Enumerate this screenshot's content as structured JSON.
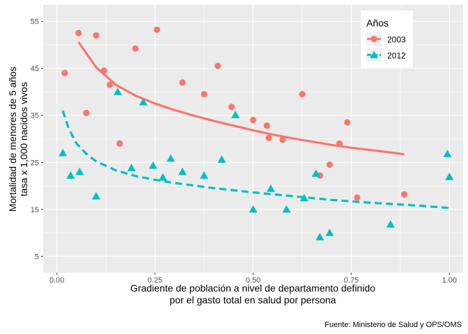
{
  "chart_data": {
    "type": "scatter",
    "xlabel": [
      "Gradiente de población a nivel de departamento definido",
      "por el gasto total en salud por persona"
    ],
    "ylabel": [
      "Mortalidad de menores de 5 años",
      "tasa x 1,000 nacidos vivos"
    ],
    "caption": "Fuente: Ministerio de Salud y OPS/OMS",
    "legend_title": "Años",
    "legend_position": "top-right",
    "grid": true,
    "xlim": [
      -0.035,
      1.035
    ],
    "ylim": [
      1.5,
      58.5
    ],
    "x_ticks": [
      0.0,
      0.25,
      0.5,
      0.75,
      1.0
    ],
    "x_tick_labels": [
      "0.00",
      "0.25",
      "0.50",
      "0.75",
      "1.00"
    ],
    "y_ticks": [
      5,
      15,
      25,
      35,
      45,
      55
    ],
    "y_tick_labels": [
      "5",
      "15",
      "25",
      "35",
      "45",
      "55"
    ],
    "series": [
      {
        "name": "2003",
        "color": "#F8766D",
        "marker": "circle",
        "points": [
          [
            0.02,
            44.0
          ],
          [
            0.055,
            52.5
          ],
          [
            0.075,
            35.5
          ],
          [
            0.1,
            52.0
          ],
          [
            0.12,
            44.5
          ],
          [
            0.135,
            41.5
          ],
          [
            0.16,
            29.0
          ],
          [
            0.2,
            49.2
          ],
          [
            0.255,
            53.2
          ],
          [
            0.32,
            42.0
          ],
          [
            0.375,
            39.5
          ],
          [
            0.41,
            45.5
          ],
          [
            0.445,
            36.8
          ],
          [
            0.5,
            34.0
          ],
          [
            0.535,
            32.8
          ],
          [
            0.54,
            30.2
          ],
          [
            0.575,
            29.8
          ],
          [
            0.625,
            39.5
          ],
          [
            0.67,
            22.2
          ],
          [
            0.695,
            24.5
          ],
          [
            0.72,
            29.0
          ],
          [
            0.74,
            33.5
          ],
          [
            0.765,
            17.5
          ],
          [
            0.885,
            18.2
          ]
        ],
        "fit": {
          "style": "solid",
          "x": [
            0.055,
            0.1,
            0.15,
            0.2,
            0.25,
            0.3,
            0.35,
            0.4,
            0.45,
            0.5,
            0.55,
            0.6,
            0.65,
            0.7,
            0.75,
            0.8,
            0.85,
            0.885
          ],
          "y": [
            50.6,
            45.2,
            41.5,
            39.2,
            37.5,
            36.1,
            34.9,
            33.8,
            32.8,
            31.8,
            30.9,
            30.1,
            29.4,
            28.7,
            28.1,
            27.6,
            27.1,
            26.7
          ]
        }
      },
      {
        "name": "2012",
        "color": "#00BFC4",
        "marker": "triangle",
        "points": [
          [
            0.015,
            27.0
          ],
          [
            0.035,
            22.2
          ],
          [
            0.058,
            23.0
          ],
          [
            0.1,
            17.8
          ],
          [
            0.155,
            40.0
          ],
          [
            0.19,
            23.8
          ],
          [
            0.22,
            37.8
          ],
          [
            0.245,
            24.3
          ],
          [
            0.27,
            21.8
          ],
          [
            0.29,
            25.8
          ],
          [
            0.32,
            23.0
          ],
          [
            0.375,
            22.2
          ],
          [
            0.42,
            25.6
          ],
          [
            0.455,
            35.1
          ],
          [
            0.5,
            15.0
          ],
          [
            0.545,
            19.4
          ],
          [
            0.585,
            15.0
          ],
          [
            0.63,
            17.4
          ],
          [
            0.66,
            22.6
          ],
          [
            0.67,
            9.1
          ],
          [
            0.695,
            10.0
          ],
          [
            0.85,
            11.8
          ],
          [
            0.995,
            26.8
          ],
          [
            1.0,
            21.9
          ]
        ],
        "fit": {
          "style": "dashed",
          "x": [
            0.015,
            0.03,
            0.05,
            0.075,
            0.1,
            0.15,
            0.2,
            0.25,
            0.3,
            0.4,
            0.5,
            0.6,
            0.7,
            0.8,
            0.9,
            1.0
          ],
          "y": [
            36.0,
            32.2,
            29.0,
            26.8,
            25.2,
            23.3,
            22.1,
            21.3,
            20.6,
            19.5,
            18.6,
            17.8,
            17.0,
            16.4,
            15.9,
            15.3
          ]
        }
      }
    ]
  }
}
